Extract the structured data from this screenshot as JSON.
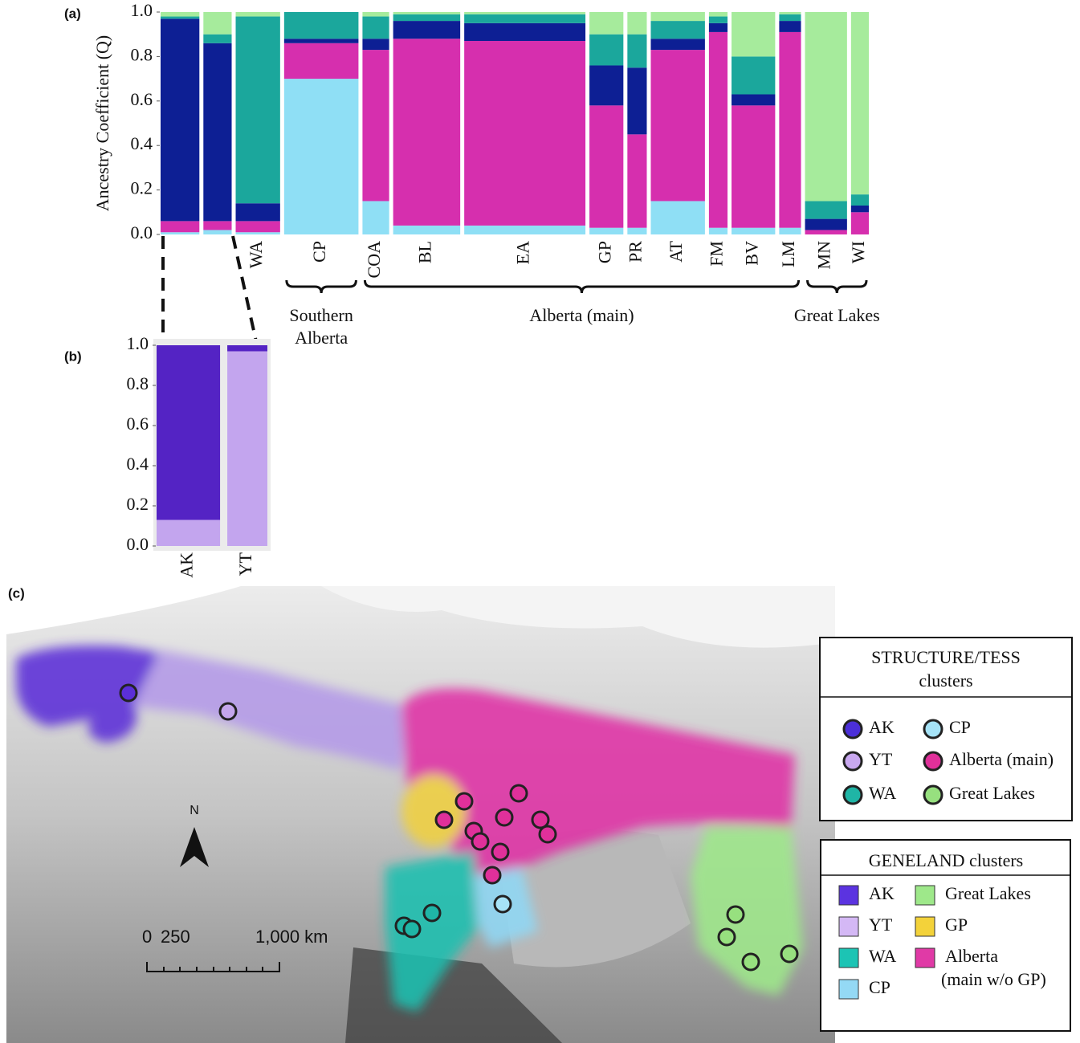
{
  "chart_data": [
    {
      "type": "bar",
      "stacked": true,
      "panel_label": "(a)",
      "y_label": "Ancestry Coefficient (Q)",
      "categories": [
        null,
        null,
        "WA",
        "CP",
        "COA",
        "BL",
        "EA",
        "GP",
        "PR",
        "AT",
        "FM",
        "BV",
        "LM",
        "MN",
        "WI"
      ],
      "series": [
        {
          "color": "#8fdff5",
          "values": [
            0.01,
            0.02,
            0.01,
            0.7,
            0.15,
            0.04,
            0.04,
            0.03,
            0.03,
            0.15,
            0.03,
            0.03,
            0.03,
            0.0,
            0.0
          ]
        },
        {
          "color": "#d62fae",
          "values": [
            0.05,
            0.04,
            0.05,
            0.16,
            0.68,
            0.84,
            0.83,
            0.55,
            0.42,
            0.68,
            0.88,
            0.55,
            0.88,
            0.02,
            0.1
          ]
        },
        {
          "color": "#0d1f94",
          "values": [
            0.91,
            0.8,
            0.08,
            0.02,
            0.05,
            0.08,
            0.08,
            0.18,
            0.3,
            0.05,
            0.04,
            0.05,
            0.05,
            0.05,
            0.03
          ]
        },
        {
          "color": "#1ba79c",
          "values": [
            0.01,
            0.04,
            0.84,
            0.12,
            0.1,
            0.03,
            0.04,
            0.14,
            0.15,
            0.08,
            0.03,
            0.17,
            0.03,
            0.08,
            0.05
          ]
        },
        {
          "color": "#a6eb9c",
          "values": [
            0.02,
            0.1,
            0.02,
            0.0,
            0.02,
            0.01,
            0.01,
            0.1,
            0.1,
            0.04,
            0.02,
            0.2,
            0.01,
            0.85,
            0.82
          ]
        }
      ],
      "groups": [
        {
          "label_lines": [
            "Southern",
            "Alberta"
          ]
        },
        {
          "label_lines": [
            "Alberta (main)"
          ]
        },
        {
          "label_lines": [
            "Great Lakes"
          ]
        }
      ],
      "ylim": [
        0,
        1
      ],
      "yticks": [
        {
          "value": 0,
          "label": "0.0"
        },
        0.2,
        0.4,
        0.6,
        0.8,
        {
          "value": 1,
          "label": "1.0"
        }
      ]
    },
    {
      "type": "bar",
      "stacked": true,
      "panel_label": "(b)",
      "categories": [
        "AK",
        "YT"
      ],
      "series": [
        {
          "color": "#c3a5ee",
          "values": [
            0.13,
            0.97
          ]
        },
        {
          "color": "#5423c4",
          "values": [
            0.87,
            0.03
          ]
        }
      ],
      "ylim": [
        0,
        1
      ],
      "yticks": [
        {
          "value": 0,
          "label": "0.0"
        },
        0.2,
        0.4,
        0.6,
        0.8,
        {
          "value": 1,
          "label": "1.0"
        }
      ]
    }
  ],
  "map": {
    "panel_label": "(c)",
    "legend_structure": {
      "title_lines": [
        "STRUCTURE/TESS",
        "clusters"
      ],
      "items": [
        {
          "label": "AK",
          "color": "#4b2fd8"
        },
        {
          "label": "YT",
          "color": "#c9a8f0"
        },
        {
          "label": "WA",
          "color": "#1fb5a6"
        },
        {
          "label": "CP",
          "color": "#a6e3f7"
        },
        {
          "label": "Alberta (main)",
          "color": "#e0309a"
        },
        {
          "label": "Great Lakes",
          "color": "#97e07f"
        }
      ]
    },
    "legend_geneland": {
      "title": "GENELAND clusters",
      "items": [
        {
          "label_lines": [
            "AK"
          ],
          "color": "#5b33e0"
        },
        {
          "label_lines": [
            "YT"
          ],
          "color": "#d4b8f5"
        },
        {
          "label_lines": [
            "WA"
          ],
          "color": "#1cc4b4"
        },
        {
          "label_lines": [
            "CP"
          ],
          "color": "#94d9f5"
        },
        {
          "label_lines": [
            "Great Lakes"
          ],
          "color": "#9ee88a"
        },
        {
          "label_lines": [
            "GP"
          ],
          "color": "#f3d23a"
        },
        {
          "label_lines": [
            "Alberta",
            "(main w/o GP)"
          ],
          "color": "#e03aa6"
        }
      ]
    },
    "scale_labels": [
      "0",
      "250",
      "1,000 km"
    ],
    "north": "N"
  }
}
